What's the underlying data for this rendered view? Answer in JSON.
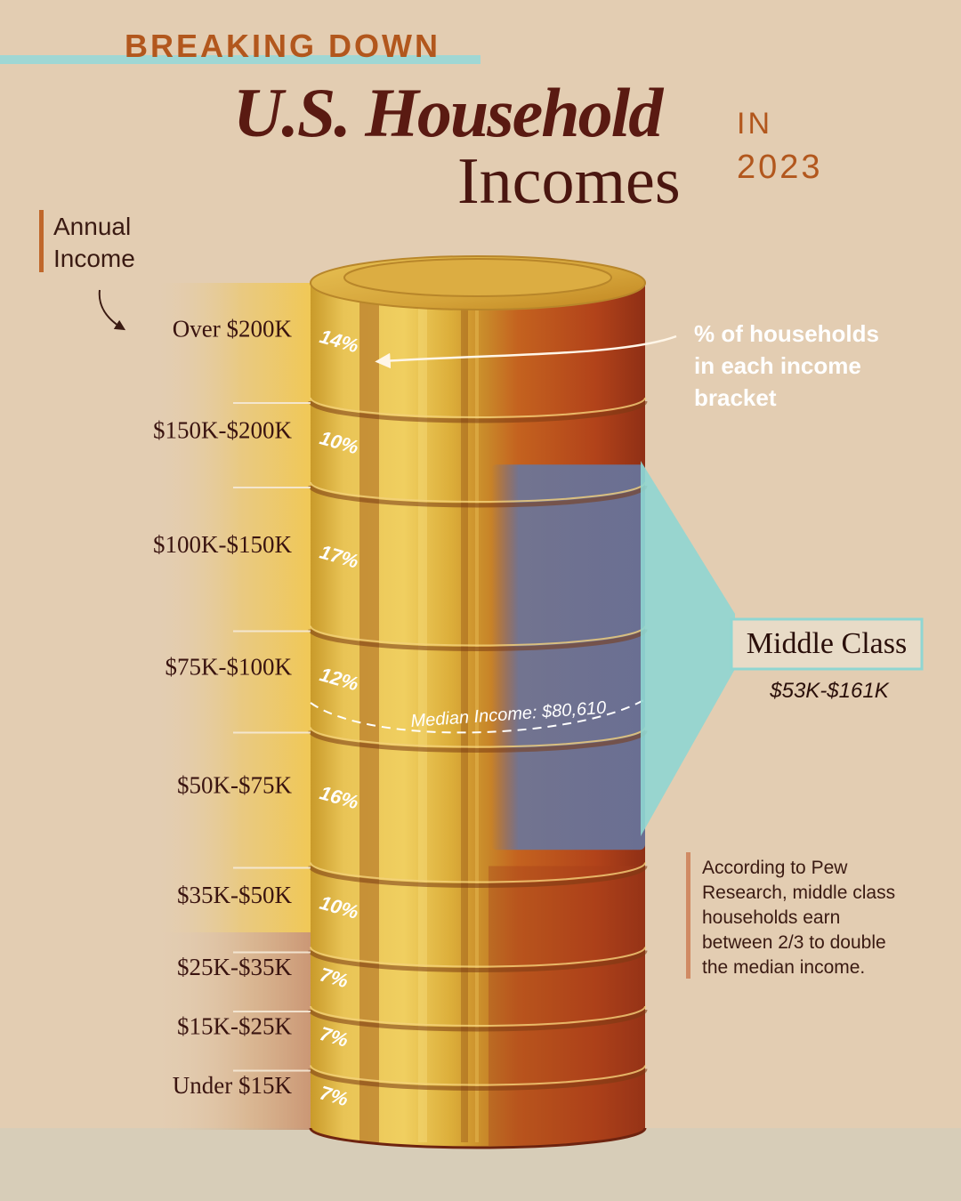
{
  "header": {
    "kicker": "BREAKING DOWN",
    "title_line1": "U.S. Household",
    "title_line2": "Incomes",
    "in_word": "IN",
    "year": "2023"
  },
  "axis_label": {
    "line1": "Annual",
    "line2": "Income"
  },
  "callout_households": {
    "line1": "% of households",
    "line2": "in each income",
    "line3": "bracket"
  },
  "median": {
    "label": "Median Income: $80,610",
    "value": 80610
  },
  "middle_class": {
    "title": "Middle Class",
    "range": "$53K-$161K"
  },
  "note": {
    "line1": "According to Pew",
    "line2": "Research, middle class",
    "line3": "households earn",
    "line4": "between 2/3 to double",
    "line5": "the median income."
  },
  "colors": {
    "background": "#e3cdb2",
    "kicker": "#b2571d",
    "title": "#5a1a12",
    "gold": "#ddb23c",
    "rust": "#b4471b",
    "middle_class_teal": "#8fd6d2",
    "middle_class_band": "#6e7596"
  },
  "chart_data": {
    "type": "bar",
    "orientation": "stacked-column",
    "title": "U.S. Household Incomes",
    "ylabel": "Annual Income",
    "categories": [
      "Over $200K",
      "$150K-$200K",
      "$100K-$150K",
      "$75K-$100K",
      "$50K-$75K",
      "$35K-$50K",
      "$25K-$35K",
      "$15K-$25K",
      "Under $15K"
    ],
    "values": [
      14,
      10,
      17,
      12,
      16,
      10,
      7,
      7,
      7
    ],
    "value_labels": [
      "14%",
      "10%",
      "17%",
      "12%",
      "16%",
      "10%",
      "7%",
      "7%",
      "7%"
    ],
    "unit": "%"
  }
}
